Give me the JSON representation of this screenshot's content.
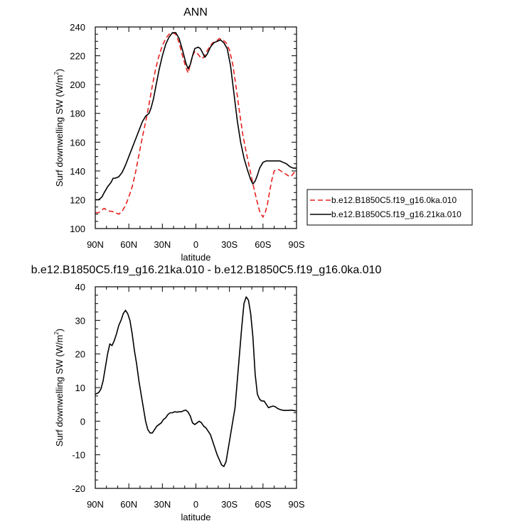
{
  "chart_data": [
    {
      "type": "line",
      "title": "ANN",
      "xlabel": "latitude",
      "ylabel": "Surf downwelling SW (W/m²)",
      "ylabel_main": "Surf downwelling SW (W/m",
      "ylabel_sup": "2",
      "ylabel_end": ")",
      "xlim": [
        90,
        -90
      ],
      "ylim": [
        100,
        240
      ],
      "x_ticks": [
        90,
        60,
        30,
        0,
        -30,
        -60,
        -90
      ],
      "x_tick_labels": [
        "90N",
        "60N",
        "30N",
        "0",
        "30S",
        "60S",
        "90S"
      ],
      "y_ticks": [
        100,
        120,
        140,
        160,
        180,
        200,
        220,
        240
      ],
      "y_tick_labels": [
        "100",
        "120",
        "140",
        "160",
        "180",
        "200",
        "220",
        "240"
      ],
      "legend": "right",
      "series": [
        {
          "name": "b.e12.B1850C5.f19_g16.0ka.010",
          "color": "#e8201e",
          "dash": "dashed",
          "points": [
            [
              90,
              111
            ],
            [
              87,
              111
            ],
            [
              84,
              113
            ],
            [
              82,
              114
            ],
            [
              80,
              113
            ],
            [
              77,
              112
            ],
            [
              75,
              112
            ],
            [
              72,
              111
            ],
            [
              69,
              110
            ],
            [
              66,
              112
            ],
            [
              63,
              116
            ],
            [
              60,
              122
            ],
            [
              57,
              129
            ],
            [
              54,
              139
            ],
            [
              51,
              151
            ],
            [
              48,
              163
            ],
            [
              45,
              174
            ],
            [
              42,
              186
            ],
            [
              39,
              199
            ],
            [
              36,
              211
            ],
            [
              33,
              220
            ],
            [
              30,
              227
            ],
            [
              27,
              232
            ],
            [
              24,
              235
            ],
            [
              21,
              236
            ],
            [
              18,
              235
            ],
            [
              15,
              229
            ],
            [
              12,
              220
            ],
            [
              9,
              212
            ],
            [
              7,
              208
            ],
            [
              5,
              214
            ],
            [
              3,
              220
            ],
            [
              1,
              223
            ],
            [
              -1,
              222
            ],
            [
              -3,
              220
            ],
            [
              -5,
              218
            ],
            [
              -7,
              219
            ],
            [
              -9,
              222
            ],
            [
              -12,
              226
            ],
            [
              -15,
              229
            ],
            [
              -18,
              230
            ],
            [
              -21,
              232
            ],
            [
              -24,
              231
            ],
            [
              -27,
              229
            ],
            [
              -30,
              224
            ],
            [
              -33,
              214
            ],
            [
              -36,
              198
            ],
            [
              -39,
              181
            ],
            [
              -42,
              165
            ],
            [
              -45,
              153
            ],
            [
              -48,
              142
            ],
            [
              -51,
              131
            ],
            [
              -54,
              121
            ],
            [
              -57,
              112
            ],
            [
              -60,
              108
            ],
            [
              -62,
              111
            ],
            [
              -64,
              117
            ],
            [
              -66,
              126
            ],
            [
              -68,
              134
            ],
            [
              -70,
              140
            ],
            [
              -72,
              141
            ],
            [
              -74,
              141
            ],
            [
              -76,
              140
            ],
            [
              -78,
              139
            ],
            [
              -80,
              138
            ],
            [
              -82,
              137
            ],
            [
              -84,
              136
            ],
            [
              -86,
              137
            ],
            [
              -88,
              139
            ],
            [
              -90,
              140
            ]
          ]
        },
        {
          "name": "b.e12.B1850C5.f19_g16.21ka.010",
          "color": "#000000",
          "dash": "solid",
          "points": [
            [
              90,
              120
            ],
            [
              87,
              120
            ],
            [
              84,
              122
            ],
            [
              82,
              125
            ],
            [
              79,
              129
            ],
            [
              76,
              132
            ],
            [
              74,
              135
            ],
            [
              72,
              135
            ],
            [
              69,
              136
            ],
            [
              66,
              139
            ],
            [
              63,
              144
            ],
            [
              60,
              150
            ],
            [
              57,
              156
            ],
            [
              54,
              162
            ],
            [
              51,
              168
            ],
            [
              48,
              174
            ],
            [
              45,
              178
            ],
            [
              42,
              180
            ],
            [
              40,
              184
            ],
            [
              38,
              190
            ],
            [
              36,
              198
            ],
            [
              33,
              210
            ],
            [
              30,
              220
            ],
            [
              27,
              228
            ],
            [
              24,
              233
            ],
            [
              21,
              236
            ],
            [
              18,
              236
            ],
            [
              15,
              232
            ],
            [
              12,
              224
            ],
            [
              9,
              215
            ],
            [
              7,
              211
            ],
            [
              5,
              214
            ],
            [
              3,
              220
            ],
            [
              1,
              225
            ],
            [
              -2,
              226
            ],
            [
              -4,
              225
            ],
            [
              -6,
              222
            ],
            [
              -8,
              219
            ],
            [
              -10,
              221
            ],
            [
              -13,
              226
            ],
            [
              -16,
              229
            ],
            [
              -19,
              230
            ],
            [
              -22,
              231
            ],
            [
              -25,
              229
            ],
            [
              -28,
              225
            ],
            [
              -31,
              213
            ],
            [
              -34,
              194
            ],
            [
              -37,
              175
            ],
            [
              -40,
              160
            ],
            [
              -43,
              149
            ],
            [
              -46,
              141
            ],
            [
              -49,
              134
            ],
            [
              -51,
              131
            ],
            [
              -53,
              133
            ],
            [
              -55,
              137
            ],
            [
              -57,
              142
            ],
            [
              -60,
              146
            ],
            [
              -63,
              147
            ],
            [
              -66,
              147
            ],
            [
              -69,
              147
            ],
            [
              -72,
              147
            ],
            [
              -75,
              147
            ],
            [
              -78,
              146
            ],
            [
              -81,
              145
            ],
            [
              -84,
              143
            ],
            [
              -87,
              142
            ],
            [
              -90,
              142
            ]
          ]
        }
      ]
    },
    {
      "type": "line",
      "title": "b.e12.B1850C5.f19_g16.21ka.010 - b.e12.B1850C5.f19_g16.0ka.010",
      "xlabel": "latitude",
      "ylabel": "Surf downwelling SW (W/m²)",
      "ylabel_main": "Surf downwelling SW (W/m",
      "ylabel_sup": "2",
      "ylabel_end": ")",
      "xlim": [
        90,
        -90
      ],
      "ylim": [
        -20,
        40
      ],
      "x_ticks": [
        90,
        60,
        30,
        0,
        -30,
        -60,
        -90
      ],
      "x_tick_labels": [
        "90N",
        "60N",
        "30N",
        "0",
        "30S",
        "60S",
        "90S"
      ],
      "y_ticks": [
        -20,
        -10,
        0,
        10,
        20,
        30,
        40
      ],
      "y_tick_labels": [
        "-20",
        "-10",
        "0",
        "10",
        "20",
        "30",
        "40"
      ],
      "series": [
        {
          "color": "#000000",
          "dash": "solid",
          "points": [
            [
              90,
              8
            ],
            [
              87,
              8.5
            ],
            [
              85,
              9.5
            ],
            [
              83,
              12
            ],
            [
              81,
              16
            ],
            [
              79,
              20
            ],
            [
              77,
              23
            ],
            [
              75,
              22.5
            ],
            [
              73,
              24
            ],
            [
              71,
              26
            ],
            [
              69,
              28.5
            ],
            [
              67,
              30
            ],
            [
              65,
              32
            ],
            [
              63,
              33
            ],
            [
              61,
              32
            ],
            [
              59,
              30
            ],
            [
              57,
              26
            ],
            [
              55,
              21
            ],
            [
              53,
              17
            ],
            [
              51,
              12
            ],
            [
              49,
              8
            ],
            [
              47,
              4
            ],
            [
              45,
              0
            ],
            [
              43,
              -2.5
            ],
            [
              41,
              -3.5
            ],
            [
              39,
              -3.5
            ],
            [
              37,
              -2.5
            ],
            [
              35,
              -1.5
            ],
            [
              33,
              -1
            ],
            [
              31,
              -0.5
            ],
            [
              29,
              0.5
            ],
            [
              27,
              1
            ],
            [
              25,
              2
            ],
            [
              23,
              2.5
            ],
            [
              21,
              2.5
            ],
            [
              19,
              2.8
            ],
            [
              17,
              2.7
            ],
            [
              15,
              2.8
            ],
            [
              13,
              2.8
            ],
            [
              11,
              3.1
            ],
            [
              9,
              3.3
            ],
            [
              7,
              2.7
            ],
            [
              5,
              1.5
            ],
            [
              3,
              -0.5
            ],
            [
              1,
              -1
            ],
            [
              -1,
              -0.5
            ],
            [
              -3,
              0
            ],
            [
              -5,
              -0.5
            ],
            [
              -7,
              -1.5
            ],
            [
              -9,
              -2
            ],
            [
              -11,
              -3
            ],
            [
              -13,
              -4
            ],
            [
              -15,
              -6
            ],
            [
              -17,
              -8
            ],
            [
              -19,
              -10
            ],
            [
              -21,
              -11.5
            ],
            [
              -23,
              -13
            ],
            [
              -25,
              -13.5
            ],
            [
              -27,
              -12
            ],
            [
              -29,
              -8
            ],
            [
              -31,
              -4
            ],
            [
              -33,
              0
            ],
            [
              -35,
              4
            ],
            [
              -37,
              12
            ],
            [
              -39,
              20
            ],
            [
              -41,
              28
            ],
            [
              -43,
              35
            ],
            [
              -45,
              37
            ],
            [
              -47,
              36
            ],
            [
              -49,
              32
            ],
            [
              -51,
              25
            ],
            [
              -53,
              14
            ],
            [
              -55,
              8
            ],
            [
              -57,
              6.5
            ],
            [
              -59,
              6
            ],
            [
              -61,
              6
            ],
            [
              -63,
              5
            ],
            [
              -65,
              4
            ],
            [
              -67,
              4.3
            ],
            [
              -69,
              4.5
            ],
            [
              -71,
              4.3
            ],
            [
              -73,
              3.8
            ],
            [
              -75,
              3.5
            ],
            [
              -77,
              3.3
            ],
            [
              -79,
              3.2
            ],
            [
              -81,
              3.2
            ],
            [
              -83,
              3.2
            ],
            [
              -85,
              3.3
            ],
            [
              -87,
              3.2
            ],
            [
              -90,
              3.0
            ]
          ]
        }
      ]
    }
  ]
}
